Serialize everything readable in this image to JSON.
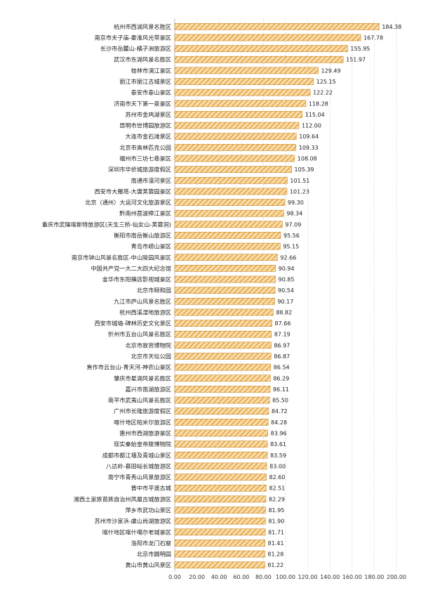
{
  "chart_data": {
    "type": "bar",
    "orientation": "horizontal",
    "bar_color": "#E8A33A",
    "bar_stroke": "#C98A25",
    "bar_pattern": "diagonal-hatch",
    "grid": true,
    "legend": "none",
    "xlim": [
      0,
      200
    ],
    "x_ticks": [
      "0.00",
      "20.00",
      "40.00",
      "60.00",
      "80.00",
      "100.00",
      "120.00",
      "140.00",
      "160.00",
      "180.00",
      "200.00"
    ],
    "categories": [
      "杭州市西湖风景名胜区",
      "南京市夫子庙-秦淮风光带景区",
      "长沙市岳麓山-橘子洲旅游区",
      "武汉市东湖风景名胜区",
      "桂林市漓江景区",
      "丽江市丽江古城景区",
      "泰安市泰山景区",
      "济南市天下第一泉景区",
      "苏州市金鸡湖景区",
      "昆明市世博园旅游区",
      "大连市金石滩景区",
      "北京市奥林匹克公园",
      "福州市三坊七巷景区",
      "深圳市华侨城旅游度假区",
      "南通市濠河景区",
      "西安市大雁塔-大唐芙蓉园景区",
      "北京（通州）大运河文化旅游景区",
      "黔南州荔波樟江景区",
      "重庆市武隆喀斯特旅游区(天生三桥-仙女山-芙蓉洞)",
      "衡阳市南岳衡山旅游区",
      "青岛市崂山景区",
      "南京市钟山风景名胜区-中山陵园风景区",
      "中国共产党一大二大四大纪念馆",
      "金华市东阳横店影视城景区",
      "北京市颐和园",
      "九江市庐山风景名胜区",
      "杭州西溪湿地旅游区",
      "西安市城墙-碑林历史文化景区",
      "忻州市五台山风景名胜区",
      "北京市故宫博物院",
      "北京市天坛公园",
      "焦作市云台山-青天河-神农山景区",
      "肇庆市星湖风景名胜区",
      "嘉兴市南湖旅游区",
      "南平市武夷山风景名胜区",
      "广州市长隆旅游度假区",
      "喀什地区帕米尔旅游区",
      "惠州市西湖旅游景区",
      "现实秦始皇帝陵博物院",
      "成都市都江堰及青城山景区",
      "八达岭-慕田峪长城旅游区",
      "南宁市青秀山风景旅游区",
      "晋中市平遥古城",
      "湘西土家族苗族自治州凤凰古城旅游区",
      "萍乡市武功山景区",
      "苏州市沙家浜-虞山尚湖旅游区",
      "喀什地区喀什噶尔老城景区",
      "洛阳市龙门石窟",
      "北京市圆明园",
      "黄山市黄山风景区"
    ],
    "values": [
      184.38,
      167.78,
      155.95,
      151.97,
      129.49,
      125.15,
      122.22,
      118.28,
      115.04,
      112.0,
      109.64,
      109.33,
      108.08,
      105.39,
      101.51,
      101.23,
      99.3,
      98.34,
      97.09,
      95.56,
      95.15,
      92.66,
      90.94,
      90.85,
      90.54,
      90.17,
      88.82,
      87.66,
      87.19,
      86.97,
      86.87,
      86.54,
      86.29,
      86.11,
      85.5,
      84.72,
      84.28,
      83.96,
      83.61,
      83.59,
      83.0,
      82.6,
      82.51,
      82.29,
      81.95,
      81.9,
      81.71,
      81.41,
      81.28,
      81.22
    ],
    "value_labels": [
      "184.38",
      "167.78",
      "155.95",
      "151.97",
      "129.49",
      "125.15",
      "122.22",
      "118.28",
      "115.04",
      "112.00",
      "109.64",
      "109.33",
      "108.08",
      "105.39",
      "101.51",
      "101.23",
      "99.30",
      "98.34",
      "97.09",
      "95.56",
      "95.15",
      "92.66",
      "90.94",
      "90.85",
      "90.54",
      "90.17",
      "88.82",
      "87.66",
      "87.19",
      "86.97",
      "86.87",
      "86.54",
      "86.29",
      "86.11",
      "85.50",
      "84.72",
      "84.28",
      "83.96",
      "83.61",
      "83.59",
      "83.00",
      "82.60",
      "82.51",
      "82.29",
      "81.95",
      "81.90",
      "81.71",
      "81.41",
      "81.28",
      "81.22"
    ]
  }
}
